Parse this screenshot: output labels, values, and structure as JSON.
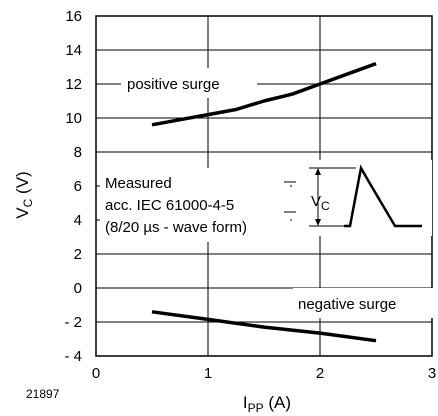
{
  "chart_data": {
    "type": "line",
    "x": {
      "label_main": "I",
      "label_sub": "PP",
      "label_unit": " (A)",
      "lim": [
        0,
        3
      ],
      "ticks": [
        0,
        1,
        2,
        3
      ],
      "tick_labels": [
        "0",
        "1",
        "2",
        "3"
      ]
    },
    "y": {
      "label_main": "V",
      "label_sub": "C",
      "label_unit": " (V)",
      "lim": [
        -4,
        16
      ],
      "ticks": [
        -4,
        -2,
        0,
        2,
        4,
        6,
        8,
        10,
        12,
        14,
        16
      ],
      "tick_labels": [
        "- 4",
        "- 2",
        "0",
        "2",
        "4",
        "6",
        "8",
        "10",
        "12",
        "14",
        "16"
      ]
    },
    "grid": true,
    "series": [
      {
        "name": "positive surge",
        "points": [
          [
            0.5,
            9.6
          ],
          [
            0.75,
            9.9
          ],
          [
            1.0,
            10.2
          ],
          [
            1.25,
            10.5
          ],
          [
            1.5,
            11.0
          ],
          [
            1.75,
            11.4
          ],
          [
            2.0,
            12.0
          ],
          [
            2.25,
            12.6
          ],
          [
            2.5,
            13.2
          ]
        ]
      },
      {
        "name": "negative surge",
        "points": [
          [
            0.5,
            -1.4
          ],
          [
            1.0,
            -1.85
          ],
          [
            1.5,
            -2.3
          ],
          [
            2.0,
            -2.65
          ],
          [
            2.5,
            -3.1
          ]
        ]
      }
    ],
    "annotation": {
      "lines": [
        "Measured",
        "acc. IEC 61000-4-5",
        "(8/20 µs - wave form)"
      ],
      "inset_label_main": "V",
      "inset_label_sub": "C"
    },
    "figure_id": "21897"
  }
}
